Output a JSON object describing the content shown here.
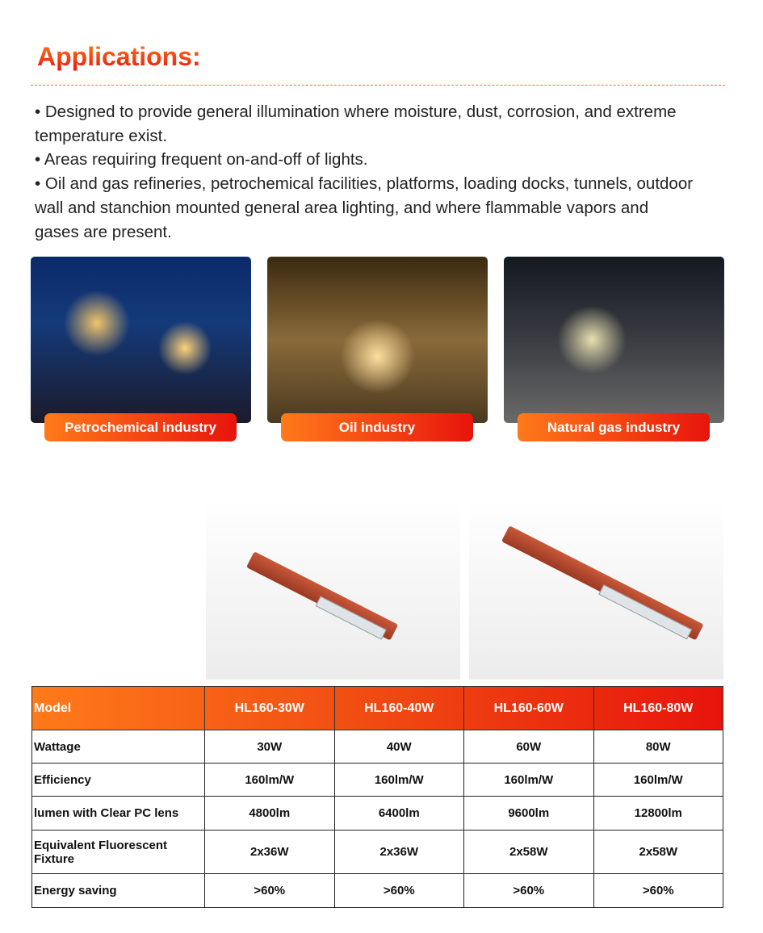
{
  "title": "Applications:",
  "bullets": [
    "• Designed to provide general illumination where moisture, dust, corrosion, and extreme temperature exist.",
    "• Areas requiring frequent on-and-off of lights.",
    "• Oil and gas refineries, petrochemical facilities,  platforms, loading docks, tunnels, outdoor wall and stanchion mounted general area lighting, and where flammable vapors and gases are present."
  ],
  "applications": [
    {
      "label": "Petrochemical industry"
    },
    {
      "label": "Oil industry"
    },
    {
      "label": "Natural gas industry"
    }
  ],
  "table": {
    "header": [
      "Model",
      "HL160-30W",
      "HL160-40W",
      "HL160-60W",
      "HL160-80W"
    ],
    "rows": [
      [
        "Wattage",
        "30W",
        "40W",
        "60W",
        "80W"
      ],
      [
        "Efficiency",
        "160lm/W",
        "160lm/W",
        "160lm/W",
        "160lm/W"
      ],
      [
        "lumen with Clear PC lens",
        "4800lm",
        "6400lm",
        "9600lm",
        "12800lm"
      ],
      [
        "Equivalent Fluorescent Fixture",
        "2x36W",
        "2x36W",
        "2x58W",
        "2x58W"
      ],
      [
        "Energy saving",
        ">60%",
        ">60%",
        ">60%",
        ">60%"
      ]
    ]
  },
  "colors": {
    "accent_start": "#ff7a1a",
    "accent_end": "#e8140c"
  }
}
